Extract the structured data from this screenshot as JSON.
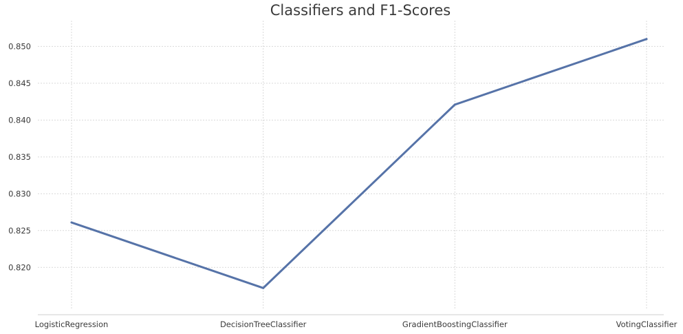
{
  "chart_data": {
    "type": "line",
    "title": "Classifiers and F1-Scores",
    "xlabel": "",
    "ylabel": "",
    "categories": [
      "LogisticRegression",
      "DecisionTreeClassifier",
      "GradientBoostingClassifier",
      "VotingClassifier"
    ],
    "series": [
      {
        "values": [
          0.8261,
          0.8172,
          0.8421,
          0.851
        ]
      }
    ],
    "yticks": [
      0.82,
      0.825,
      0.83,
      0.835,
      0.84,
      0.845,
      0.85
    ],
    "ytick_labels": [
      "0.820",
      "0.825",
      "0.830",
      "0.835",
      "0.840",
      "0.845",
      "0.850"
    ],
    "ylim": [
      0.8161,
      0.852
    ],
    "grid": true,
    "colors": {
      "line": "#5673a8",
      "grid": "#d9d9d9",
      "text": "#3a3a3a"
    }
  }
}
